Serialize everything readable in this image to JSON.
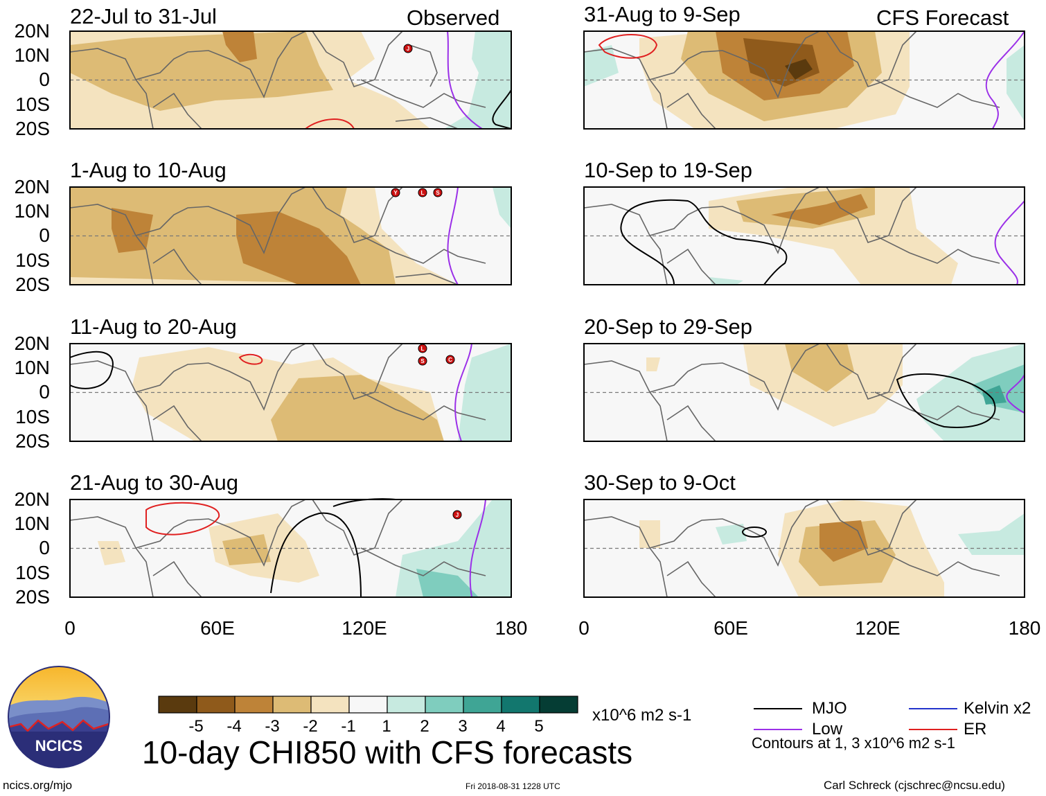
{
  "panels_left": [
    {
      "title": "22-Jul to 31-Jul",
      "label": "Observed"
    },
    {
      "title": "1-Aug to 10-Aug",
      "label": ""
    },
    {
      "title": "11-Aug to 20-Aug",
      "label": ""
    },
    {
      "title": "21-Aug to 30-Aug",
      "label": ""
    }
  ],
  "panels_right": [
    {
      "title": "31-Aug to 9-Sep",
      "label": "CFS Forecast"
    },
    {
      "title": "10-Sep to 19-Sep",
      "label": ""
    },
    {
      "title": "20-Sep to 29-Sep",
      "label": ""
    },
    {
      "title": "30-Sep to 9-Oct",
      "label": ""
    }
  ],
  "lat_labels": [
    "20N",
    "10N",
    "0",
    "10S",
    "20S"
  ],
  "lon_labels": [
    "0",
    "60E",
    "120E",
    "180"
  ],
  "colorbar": {
    "colors": [
      "#5a3a0e",
      "#8f5a1b",
      "#be8338",
      "#ddbb75",
      "#f4e3bf",
      "#f7f7f7",
      "#c7eae0",
      "#7fcdbe",
      "#3fa595",
      "#12776e",
      "#053d34"
    ],
    "ticks": [
      "-5",
      "-4",
      "-3",
      "-2",
      "-1",
      "1",
      "2",
      "3",
      "4",
      "5"
    ],
    "units": "x10^6 m2 s-1"
  },
  "legend": {
    "mjo": "MJO",
    "low": "Low",
    "kelvin": "Kelvin x2",
    "er": "ER",
    "mjo_color": "#000000",
    "low_color": "#9b30e8",
    "kelvin_color": "#2233cc",
    "er_color": "#e02020",
    "contours_note": "Contours at 1, 3 x10^6 m2 s-1"
  },
  "title": "10-day CHI850 with CFS forecasts",
  "logo_text": "NCICS",
  "footer": {
    "left": "ncics.org/mjo",
    "center": "Fri 2018-08-31 1228 UTC",
    "right": "Carl Schreck (cjschrec@ncsu.edu)"
  },
  "storm_markers": [
    {
      "panel": 0,
      "side": "left",
      "letter": "J"
    },
    {
      "panel": 1,
      "side": "left",
      "letter": "Y"
    },
    {
      "panel": 1,
      "side": "left",
      "letter": "L"
    },
    {
      "panel": 1,
      "side": "left",
      "letter": "S"
    },
    {
      "panel": 2,
      "side": "left",
      "letter": "L"
    },
    {
      "panel": 2,
      "side": "left",
      "letter": "S"
    },
    {
      "panel": 2,
      "side": "left",
      "letter": "C"
    },
    {
      "panel": 3,
      "side": "left",
      "letter": "J"
    }
  ]
}
